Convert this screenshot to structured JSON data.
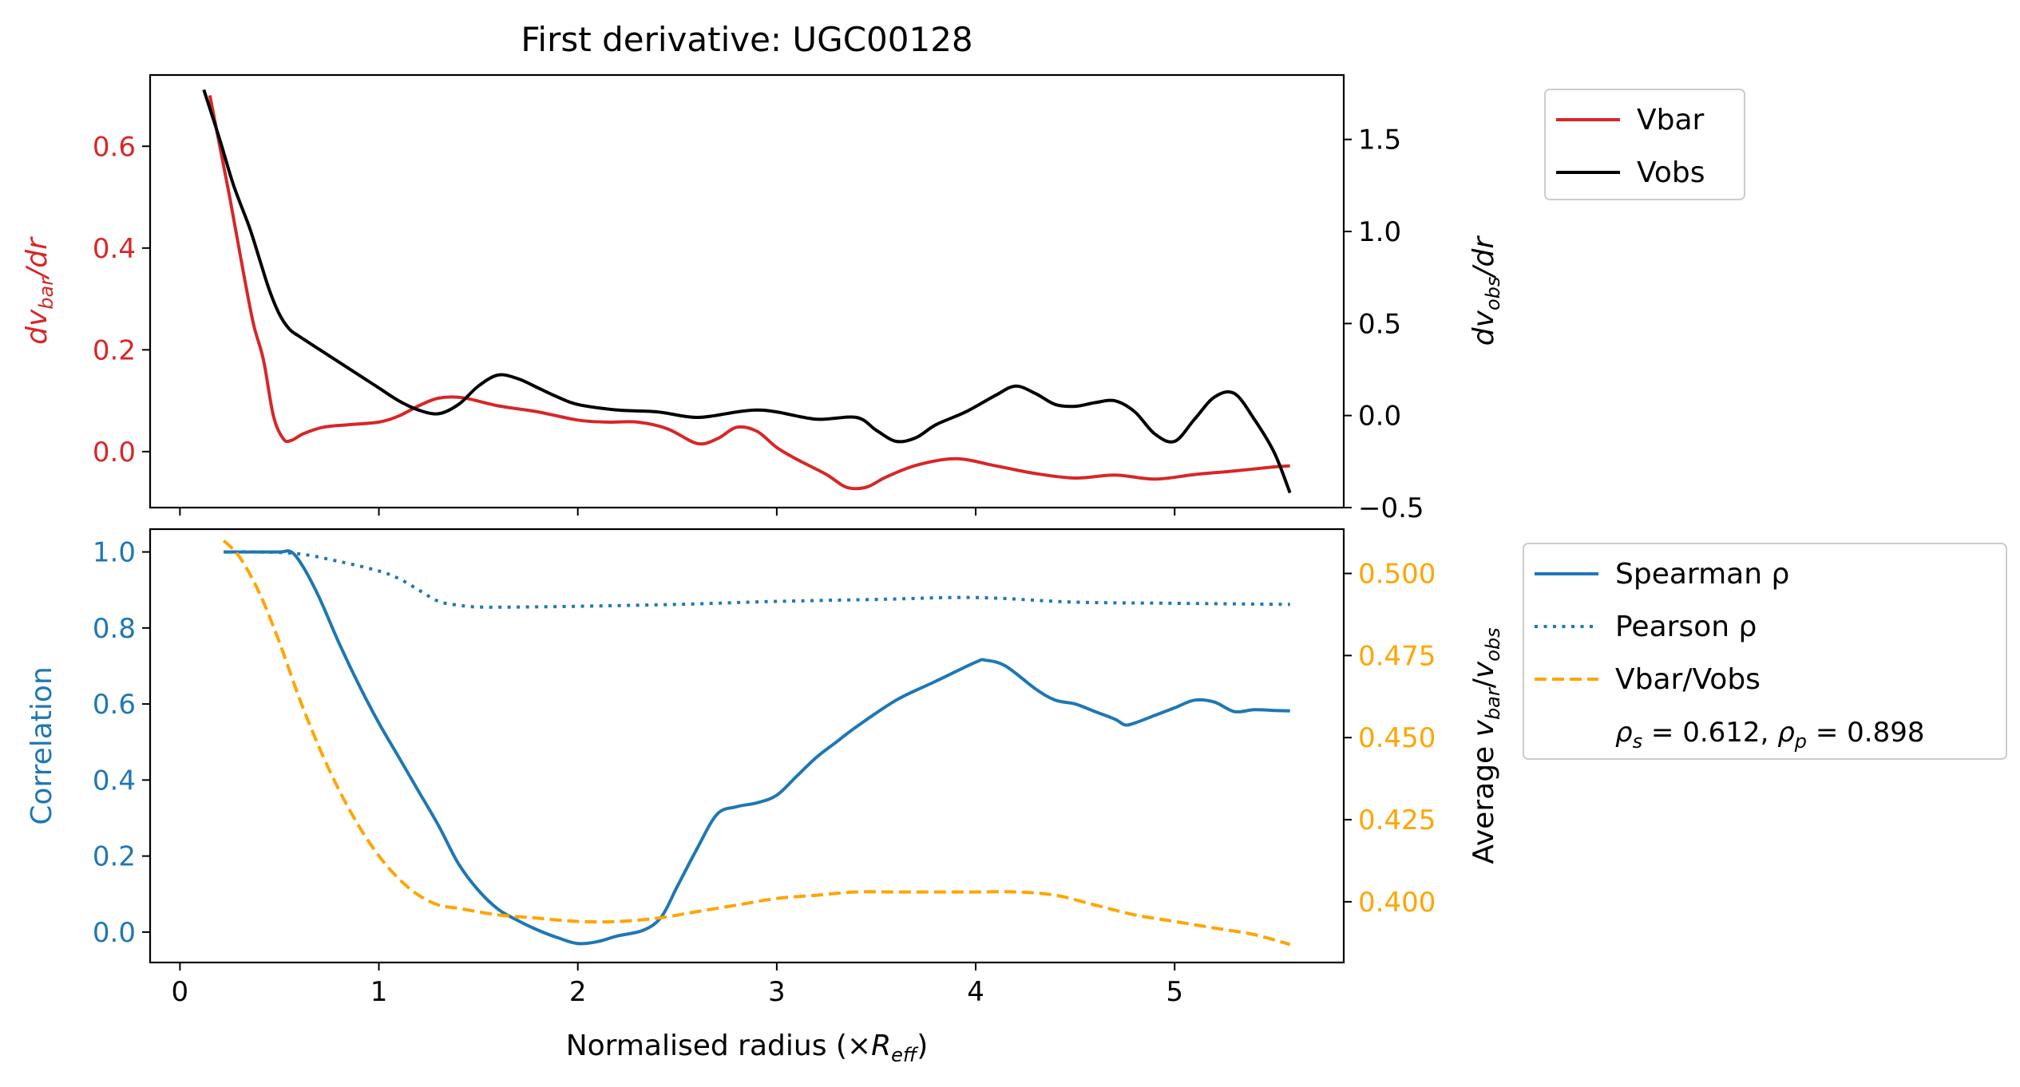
{
  "chart_data": [
    {
      "type": "line",
      "title": "First derivative: UGC00128",
      "xlim": [
        -0.15,
        5.85
      ],
      "x_ticks": [
        0,
        1,
        2,
        3,
        4,
        5
      ],
      "x_tick_labels_shown": false,
      "left_axis": {
        "label_prefix": "dv",
        "label_sub": "bar",
        "label_suffix": "/dr",
        "color": "#d62728",
        "ylim": [
          -0.11,
          0.74
        ],
        "ticks": [
          "0.0",
          "0.2",
          "0.4",
          "0.6"
        ]
      },
      "right_axis": {
        "label_prefix": "dv",
        "label_sub": "obs",
        "label_suffix": "/dr",
        "color": "#000000",
        "ylim": [
          -0.5,
          1.85
        ],
        "ticks": [
          "−0.5",
          "0.0",
          "0.5",
          "1.0",
          "1.5"
        ]
      },
      "legend": {
        "placement": "outside-right-top",
        "entries": [
          {
            "label": "Vbar",
            "color": "#d62728",
            "style": "solid"
          },
          {
            "label": "Vobs",
            "color": "#000000",
            "style": "solid"
          }
        ]
      },
      "series": [
        {
          "name": "Vbar",
          "axis": "left",
          "color": "#d62728",
          "style": "solid",
          "x": [
            0.15,
            0.25,
            0.32,
            0.37,
            0.42,
            0.47,
            0.52,
            0.56,
            0.62,
            0.72,
            0.85,
            1.0,
            1.1,
            1.2,
            1.3,
            1.42,
            1.6,
            1.8,
            2.0,
            2.15,
            2.3,
            2.45,
            2.6,
            2.7,
            2.8,
            2.9,
            3.0,
            3.1,
            3.25,
            3.35,
            3.45,
            3.55,
            3.7,
            3.9,
            4.1,
            4.3,
            4.5,
            4.7,
            4.9,
            5.1,
            5.3,
            5.5,
            5.58
          ],
          "y": [
            0.7,
            0.5,
            0.35,
            0.25,
            0.18,
            0.07,
            0.025,
            0.022,
            0.035,
            0.048,
            0.053,
            0.058,
            0.07,
            0.09,
            0.105,
            0.106,
            0.09,
            0.078,
            0.062,
            0.058,
            0.058,
            0.045,
            0.016,
            0.025,
            0.048,
            0.04,
            0.008,
            -0.015,
            -0.045,
            -0.07,
            -0.07,
            -0.05,
            -0.027,
            -0.014,
            -0.028,
            -0.043,
            -0.052,
            -0.046,
            -0.054,
            -0.045,
            -0.038,
            -0.03,
            -0.028
          ]
        },
        {
          "name": "Vobs",
          "axis": "right",
          "color": "#000000",
          "style": "solid",
          "x": [
            0.12,
            0.2,
            0.27,
            0.35,
            0.4,
            0.45,
            0.5,
            0.55,
            0.6,
            0.7,
            0.8,
            0.9,
            1.0,
            1.1,
            1.2,
            1.3,
            1.4,
            1.5,
            1.6,
            1.7,
            1.8,
            1.9,
            2.0,
            2.2,
            2.4,
            2.6,
            2.8,
            2.9,
            3.0,
            3.2,
            3.4,
            3.5,
            3.6,
            3.7,
            3.8,
            3.95,
            4.1,
            4.2,
            4.3,
            4.4,
            4.5,
            4.6,
            4.7,
            4.8,
            4.9,
            5.0,
            5.1,
            5.2,
            5.3,
            5.4,
            5.5,
            5.58
          ],
          "y": [
            1.77,
            1.5,
            1.25,
            1.02,
            0.85,
            0.68,
            0.55,
            0.47,
            0.43,
            0.36,
            0.29,
            0.22,
            0.15,
            0.08,
            0.03,
            0.01,
            0.06,
            0.16,
            0.22,
            0.2,
            0.15,
            0.1,
            0.06,
            0.03,
            0.02,
            -0.01,
            0.02,
            0.03,
            0.02,
            -0.02,
            -0.01,
            -0.08,
            -0.14,
            -0.12,
            -0.05,
            0.02,
            0.11,
            0.16,
            0.12,
            0.06,
            0.05,
            0.07,
            0.08,
            0.02,
            -0.1,
            -0.14,
            -0.02,
            0.1,
            0.12,
            -0.02,
            -0.2,
            -0.42
          ]
        }
      ]
    },
    {
      "type": "line",
      "xlabel_prefix": "Normalised radius (×",
      "xlabel_var": "R",
      "xlabel_sub": "eff",
      "xlabel_suffix": ")",
      "xlim": [
        -0.15,
        5.85
      ],
      "x_ticks": [
        0,
        1,
        2,
        3,
        4,
        5
      ],
      "x_tick_labels": [
        "0",
        "1",
        "2",
        "3",
        "4",
        "5"
      ],
      "left_axis": {
        "label": "Correlation",
        "color": "#1f77b4",
        "ylim": [
          -0.08,
          1.06
        ],
        "ticks": [
          "0.0",
          "0.2",
          "0.4",
          "0.6",
          "0.8",
          "1.0"
        ]
      },
      "right_axis": {
        "label_prefix": "Average ",
        "label_num": "v",
        "label_num_sub": "bar",
        "label_den": "v",
        "label_den_sub": "obs",
        "color": "#ffa500",
        "ylim": [
          0.3815,
          0.5135
        ],
        "ticks": [
          "0.400",
          "0.425",
          "0.450",
          "0.475",
          "0.500"
        ]
      },
      "legend": {
        "placement": "outside-right-top",
        "entries": [
          {
            "label": "Spearman ρ",
            "color": "#1f77b4",
            "style": "solid"
          },
          {
            "label": "Pearson ρ",
            "color": "#1f77b4",
            "style": "dotted"
          },
          {
            "label": "Vbar/Vobs",
            "color": "#ffa500",
            "style": "dashed"
          }
        ],
        "note": "ρs = 0.612, ρp = 0.898",
        "note_rho_s": "0.612",
        "note_rho_p": "0.898"
      },
      "series": [
        {
          "name": "Spearman ρ",
          "axis": "left",
          "color": "#1f77b4",
          "style": "solid",
          "x": [
            0.22,
            0.35,
            0.5,
            0.56,
            0.62,
            0.7,
            0.8,
            0.9,
            1.0,
            1.1,
            1.2,
            1.3,
            1.4,
            1.5,
            1.6,
            1.7,
            1.8,
            1.9,
            2.0,
            2.1,
            2.2,
            2.33,
            2.42,
            2.5,
            2.6,
            2.7,
            2.8,
            2.9,
            3.0,
            3.1,
            3.2,
            3.3,
            3.4,
            3.6,
            3.8,
            4.0,
            4.05,
            4.15,
            4.3,
            4.4,
            4.5,
            4.6,
            4.7,
            4.75,
            4.8,
            4.9,
            5.0,
            5.1,
            5.2,
            5.3,
            5.4,
            5.5,
            5.58
          ],
          "y": [
            1.0,
            1.0,
            1.0,
            1.0,
            0.96,
            0.88,
            0.76,
            0.65,
            0.55,
            0.46,
            0.37,
            0.28,
            0.18,
            0.11,
            0.06,
            0.03,
            0.005,
            -0.015,
            -0.03,
            -0.025,
            -0.01,
            0.005,
            0.04,
            0.12,
            0.22,
            0.31,
            0.33,
            0.34,
            0.36,
            0.41,
            0.46,
            0.5,
            0.54,
            0.61,
            0.66,
            0.71,
            0.715,
            0.7,
            0.64,
            0.61,
            0.6,
            0.58,
            0.56,
            0.545,
            0.55,
            0.57,
            0.59,
            0.61,
            0.605,
            0.58,
            0.585,
            0.583,
            0.582
          ]
        },
        {
          "name": "Pearson ρ",
          "axis": "left",
          "color": "#1f77b4",
          "style": "dotted",
          "x": [
            0.22,
            0.4,
            0.6,
            0.8,
            1.0,
            1.1,
            1.2,
            1.3,
            1.4,
            1.5,
            1.7,
            2.0,
            2.5,
            3.0,
            3.5,
            4.0,
            4.5,
            5.0,
            5.58
          ],
          "y": [
            1.0,
            1.0,
            0.995,
            0.975,
            0.95,
            0.93,
            0.9,
            0.87,
            0.86,
            0.855,
            0.855,
            0.857,
            0.862,
            0.87,
            0.875,
            0.88,
            0.868,
            0.865,
            0.862
          ]
        },
        {
          "name": "Vbar/Vobs",
          "axis": "right",
          "color": "#ffa500",
          "style": "dashed",
          "x": [
            0.22,
            0.3,
            0.4,
            0.5,
            0.6,
            0.7,
            0.8,
            0.9,
            1.0,
            1.1,
            1.2,
            1.3,
            1.4,
            1.6,
            1.8,
            2.0,
            2.2,
            2.4,
            2.6,
            2.8,
            3.0,
            3.2,
            3.4,
            3.6,
            3.8,
            4.0,
            4.2,
            4.4,
            4.6,
            4.8,
            5.0,
            5.2,
            5.4,
            5.58
          ],
          "y": [
            0.51,
            0.505,
            0.494,
            0.479,
            0.462,
            0.447,
            0.434,
            0.423,
            0.414,
            0.407,
            0.402,
            0.399,
            0.398,
            0.396,
            0.395,
            0.394,
            0.394,
            0.395,
            0.397,
            0.399,
            0.401,
            0.402,
            0.403,
            0.403,
            0.403,
            0.403,
            0.403,
            0.402,
            0.399,
            0.396,
            0.394,
            0.392,
            0.39,
            0.387
          ]
        }
      ]
    }
  ]
}
